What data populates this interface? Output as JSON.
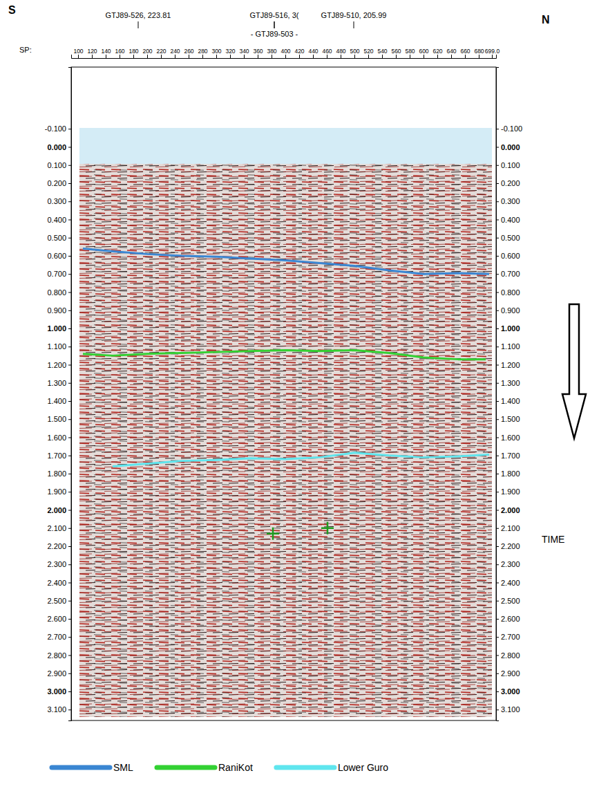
{
  "chart_data": {
    "type": "seismic_section",
    "texts": {
      "south": "S",
      "north": "N",
      "time": "TIME",
      "sp": "SP:"
    },
    "wells": [
      {
        "label": "GTJ89-526, 223.81",
        "sp": 187
      },
      {
        "label": "GTJ89-516, 3(",
        "sp": 384
      },
      {
        "label": "- GTJ89-503 -",
        "sp": 384
      },
      {
        "label": "GTJ89-510, 205.99",
        "sp": 499
      }
    ],
    "xlim": [
      90,
      705
    ],
    "xticks": [
      100,
      120,
      140,
      160,
      180,
      200,
      220,
      240,
      260,
      280,
      300,
      320,
      340,
      360,
      380,
      400,
      420,
      440,
      460,
      480,
      500,
      520,
      540,
      560,
      580,
      600,
      620,
      640,
      660,
      680,
      {
        "value": 699,
        "label": "699.0"
      }
    ],
    "ylim": [
      -0.44,
      3.16
    ],
    "yticks": [
      {
        "value": -0.1,
        "label": "-0.100"
      },
      {
        "value": 0,
        "label": "0.000"
      },
      {
        "value": 0.1,
        "label": "0.100"
      },
      {
        "value": 0.2,
        "label": "0.200"
      },
      {
        "value": 0.3,
        "label": "0.300"
      },
      {
        "value": 0.4,
        "label": "0.400"
      },
      {
        "value": 0.5,
        "label": "0.500"
      },
      {
        "value": 0.6,
        "label": "0.600"
      },
      {
        "value": 0.7,
        "label": "0.700"
      },
      {
        "value": 0.8,
        "label": "0.800"
      },
      {
        "value": 0.9,
        "label": "0.900"
      },
      {
        "value": 1,
        "label": "1.000"
      },
      {
        "value": 1.1,
        "label": "1.100"
      },
      {
        "value": 1.2,
        "label": "1.200"
      },
      {
        "value": 1.3,
        "label": "1.300"
      },
      {
        "value": 1.4,
        "label": "1.400"
      },
      {
        "value": 1.5,
        "label": "1.500"
      },
      {
        "value": 1.6,
        "label": "1.600"
      },
      {
        "value": 1.7,
        "label": "1.700"
      },
      {
        "value": 1.8,
        "label": "1.800"
      },
      {
        "value": 1.9,
        "label": "1.900"
      },
      {
        "value": 2,
        "label": "2.000"
      },
      {
        "value": 2.1,
        "label": "2.100"
      },
      {
        "value": 2.2,
        "label": "2.200"
      },
      {
        "value": 2.3,
        "label": "2.300"
      },
      {
        "value": 2.4,
        "label": "2.400"
      },
      {
        "value": 2.5,
        "label": "2.500"
      },
      {
        "value": 2.6,
        "label": "2.600"
      },
      {
        "value": 2.7,
        "label": "2.700"
      },
      {
        "value": 2.8,
        "label": "2.800"
      },
      {
        "value": 2.9,
        "label": "2.900"
      },
      {
        "value": 3,
        "label": "3.000"
      },
      {
        "value": 3.1,
        "label": "3.100"
      }
    ],
    "series": [
      {
        "name": "SML",
        "color": "#3a86d2",
        "type": "line",
        "x": [
          107,
          150,
          200,
          250,
          300,
          350,
          400,
          450,
          500,
          550,
          600,
          650,
          695
        ],
        "values": [
          0.56,
          0.575,
          0.59,
          0.6,
          0.605,
          0.615,
          0.625,
          0.64,
          0.655,
          0.68,
          0.7,
          0.695,
          0.7
        ]
      },
      {
        "name": "RaniKot",
        "color": "#33d133",
        "type": "line",
        "x": [
          107,
          150,
          200,
          250,
          300,
          350,
          400,
          450,
          500,
          550,
          600,
          650,
          690
        ],
        "values": [
          1.14,
          1.15,
          1.14,
          1.135,
          1.13,
          1.125,
          1.12,
          1.125,
          1.12,
          1.135,
          1.16,
          1.17,
          1.17
        ]
      },
      {
        "name": "Lower Guro",
        "color": "#5fe6ee",
        "type": "line",
        "x": [
          150,
          200,
          250,
          300,
          350,
          400,
          450,
          500,
          550,
          600,
          650,
          695
        ],
        "values": [
          1.76,
          1.745,
          1.73,
          1.725,
          1.715,
          1.72,
          1.71,
          1.685,
          1.7,
          1.71,
          1.705,
          1.695
        ]
      }
    ],
    "crosses": {
      "x": [
        382,
        461
      ],
      "y": [
        2.13,
        2.1
      ],
      "color": "#1f9a1f"
    },
    "legend": "bottom"
  }
}
